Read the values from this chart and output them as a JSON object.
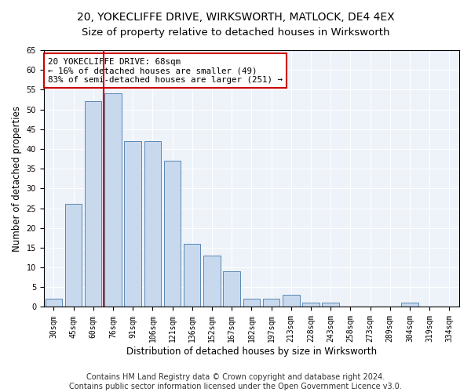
{
  "title": "20, YOKECLIFFE DRIVE, WIRKSWORTH, MATLOCK, DE4 4EX",
  "subtitle": "Size of property relative to detached houses in Wirksworth",
  "xlabel": "Distribution of detached houses by size in Wirksworth",
  "ylabel": "Number of detached properties",
  "categories": [
    "30sqm",
    "45sqm",
    "60sqm",
    "76sqm",
    "91sqm",
    "106sqm",
    "121sqm",
    "136sqm",
    "152sqm",
    "167sqm",
    "182sqm",
    "197sqm",
    "213sqm",
    "228sqm",
    "243sqm",
    "258sqm",
    "273sqm",
    "289sqm",
    "304sqm",
    "319sqm",
    "334sqm"
  ],
  "values": [
    2,
    26,
    52,
    54,
    42,
    42,
    37,
    16,
    13,
    9,
    2,
    2,
    3,
    1,
    1,
    0,
    0,
    0,
    1,
    0,
    0
  ],
  "bar_color": "#c9d9ed",
  "bar_edge_color": "#5a88b5",
  "vline_color": "#cc0000",
  "annotation_text": "20 YOKECLIFFE DRIVE: 68sqm\n← 16% of detached houses are smaller (49)\n83% of semi-detached houses are larger (251) →",
  "annotation_box_color": "#ffffff",
  "annotation_box_edge": "#cc0000",
  "ylim": [
    0,
    65
  ],
  "yticks": [
    0,
    5,
    10,
    15,
    20,
    25,
    30,
    35,
    40,
    45,
    50,
    55,
    60,
    65
  ],
  "footer1": "Contains HM Land Registry data © Crown copyright and database right 2024.",
  "footer2": "Contains public sector information licensed under the Open Government Licence v3.0.",
  "bg_color": "#eef2f9",
  "title_fontsize": 10,
  "tick_fontsize": 7,
  "label_fontsize": 8.5,
  "footer_fontsize": 7,
  "vline_x_data": 2.53
}
